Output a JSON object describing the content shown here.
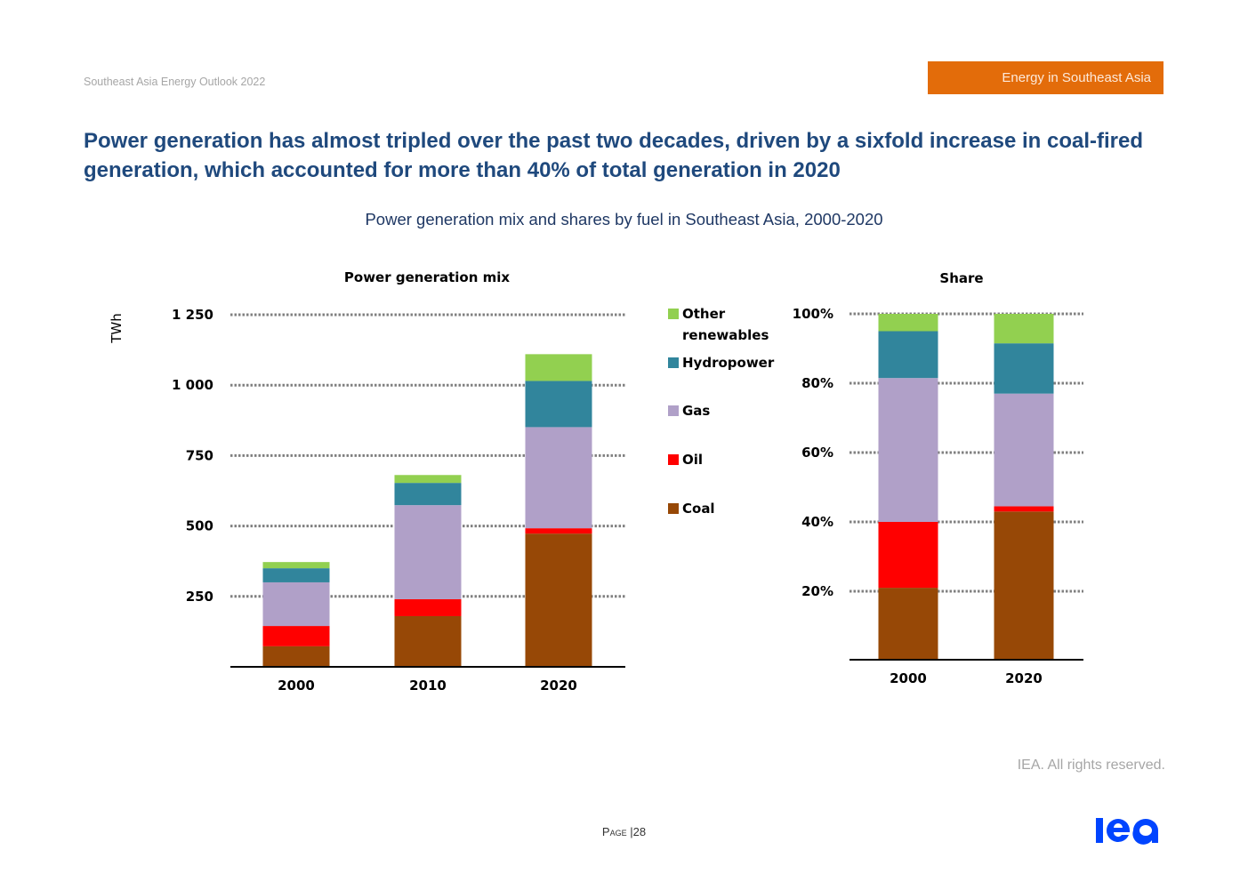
{
  "header": {
    "report_name": "Southeast Asia Energy Outlook 2022",
    "section_tag": "Energy in Southeast Asia"
  },
  "headline": "Power generation has almost tripled over the past two decades, driven by a sixfold increase in coal-fired generation, which accounted for more than 40% of total generation in 2020",
  "subtitle": "Power generation mix and shares by fuel in Southeast Asia, 2000-2020",
  "footer": {
    "rights": "IEA. All rights reserved.",
    "page_label": "Page",
    "page_separator": "|",
    "page_number": "28",
    "logo_text": "iea"
  },
  "colors": {
    "coal": "#974806",
    "oil": "#ff0000",
    "gas": "#b0a0c8",
    "hydropower": "#31859c",
    "other_renewables": "#92d050",
    "gridline": "#808080",
    "section_tag": "#e36c0a",
    "headline": "#1f497d",
    "logo": "#0044ff"
  },
  "chart_data": [
    {
      "type": "bar",
      "stacked": true,
      "title": "Power generation mix",
      "ylabel": "TWh",
      "xlabel": "",
      "categories": [
        "2000",
        "2010",
        "2020"
      ],
      "ylim": [
        0,
        1250
      ],
      "yticks": [
        250,
        500,
        750,
        1000,
        1250
      ],
      "ytick_labels": [
        "250",
        "500",
        "750",
        "1 000",
        "1 250"
      ],
      "grid": true,
      "series": [
        {
          "name": "Coal",
          "key": "coal",
          "values": [
            73,
            180,
            473
          ]
        },
        {
          "name": "Oil",
          "key": "oil",
          "values": [
            72,
            60,
            19
          ]
        },
        {
          "name": "Gas",
          "key": "gas",
          "values": [
            155,
            334,
            359
          ]
        },
        {
          "name": "Hydropower",
          "key": "hydropower",
          "values": [
            50,
            79,
            164
          ]
        },
        {
          "name": "Other renewables",
          "key": "other_renewables",
          "values": [
            22,
            28,
            95
          ]
        }
      ],
      "legend": {
        "position": "right",
        "items": [
          {
            "key": "other_renewables",
            "lines": [
              "Other",
              "renewables"
            ]
          },
          {
            "key": "hydropower",
            "lines": [
              "Hydropower"
            ]
          },
          {
            "key": "gas",
            "lines": [
              "Gas"
            ]
          },
          {
            "key": "oil",
            "lines": [
              "Oil"
            ]
          },
          {
            "key": "coal",
            "lines": [
              "Coal"
            ]
          }
        ]
      }
    },
    {
      "type": "bar",
      "stacked": true,
      "percent": true,
      "title": "Share",
      "ylabel": "",
      "xlabel": "",
      "categories": [
        "2000",
        "2020"
      ],
      "ylim": [
        0,
        100
      ],
      "yticks": [
        20,
        40,
        60,
        80,
        100
      ],
      "ytick_labels": [
        "20%",
        "40%",
        "60%",
        "80%",
        "100%"
      ],
      "grid": true,
      "series": [
        {
          "name": "Coal",
          "key": "coal",
          "values": [
            21,
            43
          ]
        },
        {
          "name": "Oil",
          "key": "oil",
          "values": [
            19,
            1.5
          ]
        },
        {
          "name": "Gas",
          "key": "gas",
          "values": [
            41.5,
            32.5
          ]
        },
        {
          "name": "Hydropower",
          "key": "hydropower",
          "values": [
            13.5,
            14.5
          ]
        },
        {
          "name": "Other renewables",
          "key": "other_renewables",
          "values": [
            5,
            8.5
          ]
        }
      ]
    }
  ]
}
